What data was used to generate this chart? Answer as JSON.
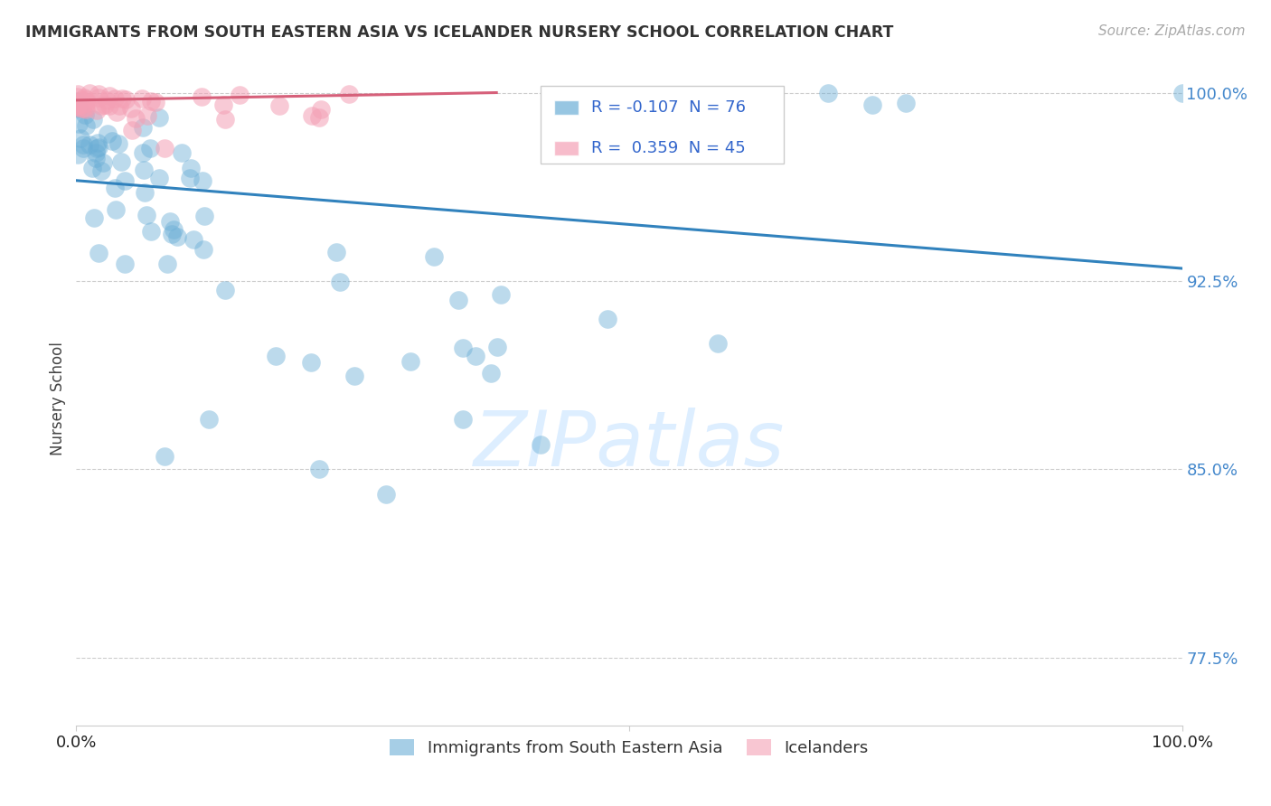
{
  "title": "IMMIGRANTS FROM SOUTH EASTERN ASIA VS ICELANDER NURSERY SCHOOL CORRELATION CHART",
  "source": "Source: ZipAtlas.com",
  "ylabel": "Nursery School",
  "ytick_labels": [
    "77.5%",
    "85.0%",
    "92.5%",
    "100.0%"
  ],
  "ytick_values": [
    0.775,
    0.85,
    0.925,
    1.0
  ],
  "legend_blue_label": "Immigrants from South Eastern Asia",
  "legend_pink_label": "Icelanders",
  "R_blue": -0.107,
  "N_blue": 76,
  "R_pink": 0.359,
  "N_pink": 45,
  "blue_color": "#6baed6",
  "pink_color": "#f4a0b5",
  "blue_line_color": "#3182bd",
  "pink_line_color": "#d6607a",
  "blue_trend_x": [
    0.0,
    1.0
  ],
  "blue_trend_y": [
    0.965,
    0.93
  ],
  "pink_trend_x": [
    0.0,
    0.38
  ],
  "pink_trend_y": [
    0.997,
    1.0
  ],
  "xlim": [
    0.0,
    1.0
  ],
  "ylim": [
    0.748,
    1.008
  ]
}
